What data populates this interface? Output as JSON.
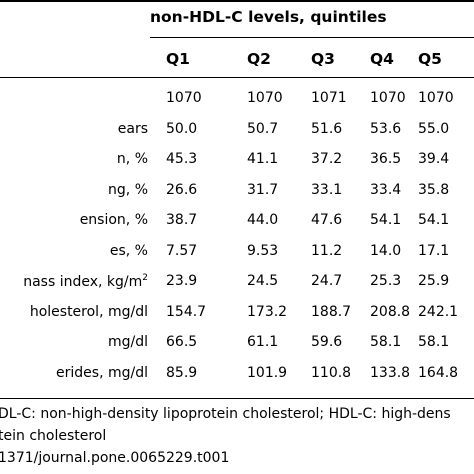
{
  "table": {
    "group_header": "non-HDL-C levels, quintiles",
    "columns": [
      "Q1",
      "Q2",
      "Q3",
      "Q4",
      "Q5"
    ],
    "rows": [
      {
        "label": "",
        "values": [
          "1070",
          "1070",
          "1071",
          "1070",
          "1070"
        ]
      },
      {
        "label": "ears",
        "values": [
          "50.0",
          "50.7",
          "51.6",
          "53.6",
          "55.0"
        ]
      },
      {
        "label": "n, %",
        "values": [
          "45.3",
          "41.1",
          "37.2",
          "36.5",
          "39.4"
        ]
      },
      {
        "label": "ng, %",
        "values": [
          "26.6",
          "31.7",
          "33.1",
          "33.4",
          "35.8"
        ]
      },
      {
        "label": "ension, %",
        "values": [
          "38.7",
          "44.0",
          "47.6",
          "54.1",
          "54.1"
        ]
      },
      {
        "label": "es, %",
        "values": [
          "7.57",
          "9.53",
          "11.2",
          "14.0",
          "17.1"
        ]
      },
      {
        "label": "nass index, kg/m",
        "label_sup": "2",
        "values": [
          "23.9",
          "24.5",
          "24.7",
          "25.3",
          "25.9"
        ]
      },
      {
        "label": "holesterol, mg/dl",
        "values": [
          "154.7",
          "173.2",
          "188.7",
          "208.8",
          "242.1"
        ]
      },
      {
        "label": "mg/dl",
        "values": [
          "66.5",
          "61.1",
          "59.6",
          "58.1",
          "58.1"
        ]
      },
      {
        "label": "erides, mg/dl",
        "values": [
          "85.9",
          "101.9",
          "110.8",
          "133.8",
          "164.8"
        ]
      }
    ]
  },
  "footnotes": {
    "line1": "DL-C: non-high-density lipoprotein cholesterol; HDL-C: high-dens",
    "line2": "tein cholesterol",
    "line3": "1371/journal.pone.0065229.t001"
  }
}
